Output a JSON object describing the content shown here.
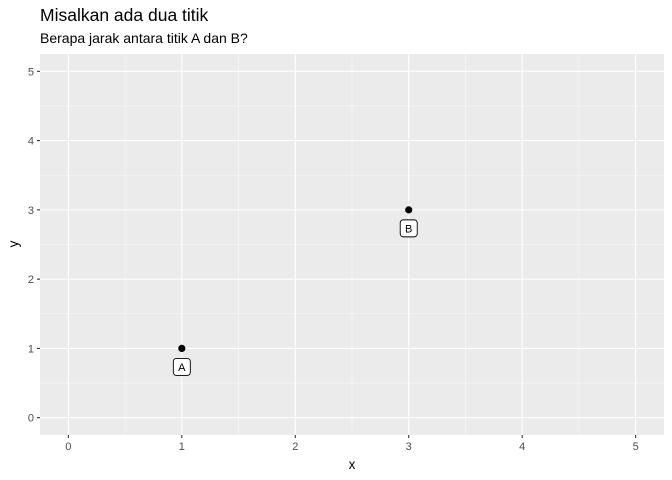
{
  "chart_data": {
    "type": "scatter",
    "title": "Misalkan ada dua titik",
    "subtitle": "Berapa jarak antara titik A dan B?",
    "xlabel": "x",
    "ylabel": "y",
    "xlim": [
      -0.25,
      5.25
    ],
    "ylim": [
      -0.25,
      5.25
    ],
    "x_ticks": [
      0,
      1,
      2,
      3,
      4,
      5
    ],
    "y_ticks": [
      0,
      1,
      2,
      3,
      4,
      5
    ],
    "x_tick_labels": [
      "0",
      "1",
      "2",
      "3",
      "4",
      "5"
    ],
    "y_tick_labels": [
      "0",
      "1",
      "2",
      "3",
      "4",
      "5"
    ],
    "grid": true,
    "points": [
      {
        "label": "A",
        "x": 1,
        "y": 1
      },
      {
        "label": "B",
        "x": 3,
        "y": 3
      }
    ]
  },
  "colors": {
    "panel_background": "#ebebeb",
    "grid_major": "#ffffff",
    "point": "#000000"
  }
}
